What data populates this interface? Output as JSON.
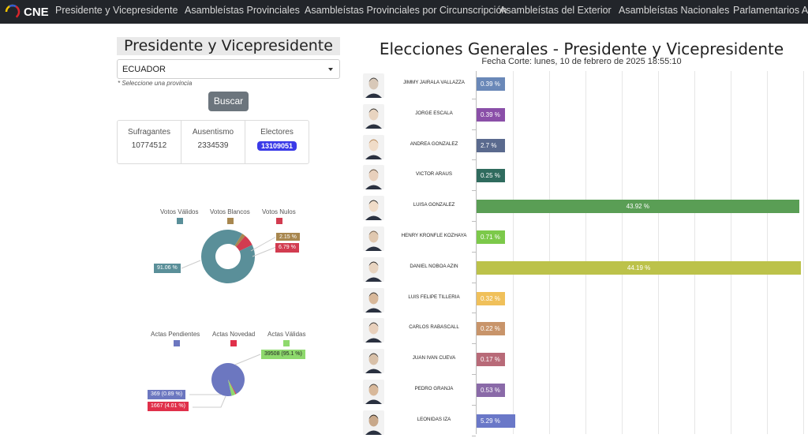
{
  "nav": {
    "brand": "CNE",
    "items": [
      {
        "label": "Presidente y Vicepresidente"
      },
      {
        "label": "Asambleístas Provinciales"
      },
      {
        "label": "Asambleístas Provinciales por Circunscripción"
      },
      {
        "label": "Asambleístas del Exterior"
      },
      {
        "label": "Asambleístas Nacionales"
      },
      {
        "label": "Parlamentarios Andinos"
      }
    ]
  },
  "left": {
    "title": "Presidente y Vicepresidente",
    "province_value": "ECUADOR",
    "hint": "* Seleccione una provincia",
    "search_button": "Buscar",
    "stats": [
      {
        "label": "Sufragantes",
        "value": "10774512"
      },
      {
        "label": "Ausentismo",
        "value": "2334539"
      },
      {
        "label": "Electores",
        "value": "13109051"
      }
    ]
  },
  "votes_pie": {
    "legend": [
      {
        "label": "Votos Válidos",
        "color": "#5a8f99"
      },
      {
        "label": "Votos Blancos",
        "color": "#a8874f"
      },
      {
        "label": "Votos Nulos",
        "color": "#d23c50"
      }
    ],
    "callouts": [
      "91.06 %",
      "2.15 %",
      "6.79 %"
    ],
    "values": [
      91.06,
      2.15,
      6.79
    ]
  },
  "actas_pie": {
    "legend": [
      {
        "label": "Actas Pendientes",
        "color": "#6c77c0"
      },
      {
        "label": "Actas Novedad",
        "color": "#e0304a"
      },
      {
        "label": "Actas Válidas",
        "color": "#8ed96d"
      }
    ],
    "callouts": [
      "39508 (95.1 %)",
      "369 (0.89 %)",
      "1667 (4.01 %)"
    ],
    "values": [
      95.1,
      0.89,
      4.01
    ]
  },
  "results": {
    "title": "Elecciones Generales - Presidente y Vicepresidente",
    "subtitle": "Fecha Corte: lunes, 10 de febrero de 2025 18:55:10"
  },
  "chart_data": {
    "type": "bar",
    "orientation": "horizontal",
    "title": "Elecciones Generales - Presidente y Vicepresidente",
    "categories": [
      "JIMMY JAIRALA VALLAZZA",
      "JORGE ESCALA",
      "ANDREA GONZALEZ",
      "VICTOR ARAUS",
      "LUISA GONZALEZ",
      "HENRY KRONFLE KOZHAYA",
      "DANIEL NOBOA AZIN",
      "LUIS FELIPE TILLERIA",
      "CARLOS RABASCALL",
      "JUAN IVAN CUEVA",
      "PEDRO GRANJA",
      "LEONIDAS IZA"
    ],
    "values": [
      0.39,
      0.39,
      2.7,
      0.25,
      43.92,
      0.71,
      44.19,
      0.32,
      0.22,
      0.17,
      0.53,
      5.29
    ],
    "labels": [
      "0.39 %",
      "0.39 %",
      "2.7 %",
      "0.25 %",
      "43.92 %",
      "0.71 %",
      "44.19 %",
      "0.32 %",
      "0.22 %",
      "0.17 %",
      "0.53 %",
      "5.29 %"
    ],
    "colors": [
      "#6a88b8",
      "#8a4fa8",
      "#5a6a8e",
      "#2f6b5e",
      "#5a9e55",
      "#7cc94a",
      "#bcc24a",
      "#f0c05a",
      "#c8946a",
      "#b86a78",
      "#8a6aa8",
      "#6a78c8"
    ],
    "grid": true
  }
}
